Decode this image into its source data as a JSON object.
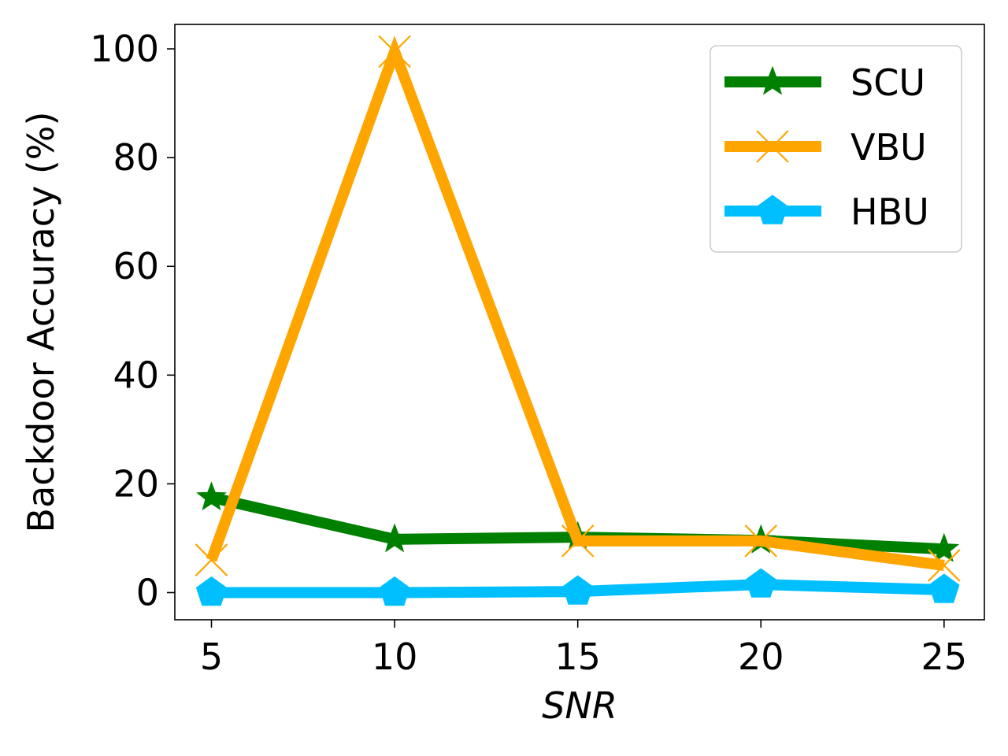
{
  "chart_data": {
    "type": "line",
    "title": "",
    "xlabel": "SNR",
    "ylabel": "Backdoor Accuracy (%)",
    "x": [
      5,
      10,
      15,
      20,
      25
    ],
    "xlim": [
      4,
      26.1
    ],
    "ylim": [
      -5,
      104.5
    ],
    "xticks": [
      5,
      10,
      15,
      20,
      25
    ],
    "yticks": [
      0,
      20,
      40,
      60,
      80,
      100
    ],
    "grid": false,
    "legend_position": "top-right",
    "series": [
      {
        "name": "SCU",
        "color": "#008000",
        "marker": "star",
        "values": [
          17.5,
          9.8,
          10.2,
          9.6,
          8.0
        ]
      },
      {
        "name": "VBU",
        "color": "#ffa500",
        "marker": "x",
        "values": [
          6.0,
          99.5,
          9.5,
          9.5,
          5.0
        ]
      },
      {
        "name": "HBU",
        "color": "#00bfff",
        "marker": "pentagon",
        "values": [
          0.0,
          0.0,
          0.2,
          1.5,
          0.5
        ]
      }
    ]
  }
}
